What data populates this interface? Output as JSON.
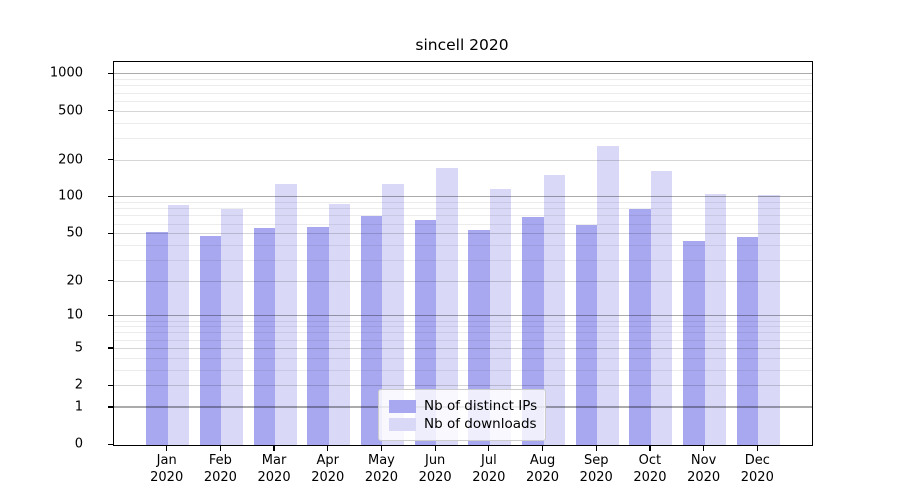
{
  "title": "sincell 2020",
  "legend": {
    "items": [
      {
        "label": "Nb of distinct IPs",
        "color": "#a8a8f0"
      },
      {
        "label": "Nb of downloads",
        "color": "#d9d9f7"
      }
    ]
  },
  "chart_data": {
    "type": "bar",
    "title": "sincell 2020",
    "categories": [
      "Jan 2020",
      "Feb 2020",
      "Mar 2020",
      "Apr 2020",
      "May 2020",
      "Jun 2020",
      "Jul 2020",
      "Aug 2020",
      "Sep 2020",
      "Oct 2020",
      "Nov 2020",
      "Dec 2020"
    ],
    "month_labels": [
      "Jan",
      "Feb",
      "Mar",
      "Apr",
      "May",
      "Jun",
      "Jul",
      "Aug",
      "Sep",
      "Oct",
      "Nov",
      "Dec"
    ],
    "year_label": "2020",
    "series": [
      {
        "name": "Nb of distinct IPs",
        "color": "#a8a8f0",
        "values": [
          52,
          48,
          56,
          57,
          71,
          65,
          54,
          69,
          60,
          80,
          44,
          47
        ]
      },
      {
        "name": "Nb of downloads",
        "color": "#d9d9f7",
        "values": [
          87,
          81,
          129,
          89,
          130,
          173,
          117,
          152,
          261,
          164,
          106,
          104
        ]
      }
    ],
    "xlabel": "",
    "ylabel": "",
    "y_scale": "log1p",
    "ylim": [
      0,
      1261
    ],
    "y_ticks": [
      0,
      1,
      2,
      5,
      10,
      20,
      50,
      100,
      200,
      500,
      1000
    ],
    "grid": "on",
    "grid_emphasized_ticks": [
      1,
      10,
      100,
      1000
    ],
    "legend_position": "lower center",
    "colors": {
      "bar_ips": "#a8a8f0",
      "bar_downloads": "#d9d9f7",
      "grid_power10": "#ababab",
      "grid_major": "#d6d6d6",
      "grid_minor": "#ececec",
      "axis": "#000000"
    }
  }
}
